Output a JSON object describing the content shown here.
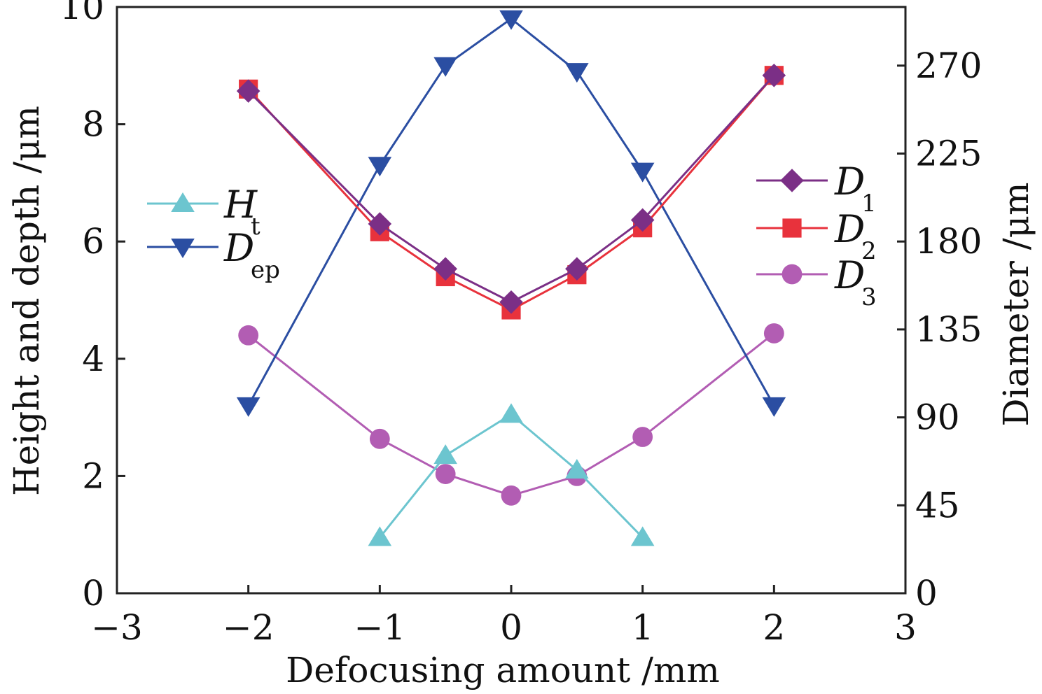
{
  "chart_data": {
    "type": "line",
    "xlabel": "Defocusing amount /mm",
    "ylabel_left": "Height and depth /μm",
    "ylabel_right": "Diameter /μm",
    "xlim": [
      -3,
      3
    ],
    "ylim_left": [
      0,
      10
    ],
    "ylim_right": [
      0,
      300
    ],
    "x_ticks": [
      "−3",
      "−2",
      "−1",
      "0",
      "1",
      "2",
      "3"
    ],
    "y_left_ticks": [
      "0",
      "2",
      "4",
      "6",
      "8",
      "10"
    ],
    "y_right_ticks": [
      "0",
      "45",
      "90",
      "135",
      "180",
      "225",
      "270"
    ],
    "grid": false,
    "series": [
      {
        "name": "H",
        "sub": "t",
        "axis": "left",
        "marker": "triangle-up",
        "color": "#6cc5cf",
        "points": [
          [
            -1,
            0.95
          ],
          [
            -0.5,
            2.35
          ],
          [
            0,
            3.05
          ],
          [
            0.5,
            2.1
          ],
          [
            1,
            0.95
          ]
        ]
      },
      {
        "name": "D",
        "sub": "ep",
        "axis": "left",
        "marker": "triangle-down",
        "color": "#2b4ea2",
        "points": [
          [
            -2,
            3.2
          ],
          [
            -1,
            7.3
          ],
          [
            -0.5,
            9.0
          ],
          [
            0,
            9.8
          ],
          [
            0.5,
            8.9
          ],
          [
            1,
            7.2
          ],
          [
            2,
            3.2
          ]
        ]
      },
      {
        "name": "D",
        "sub": "1",
        "axis": "right",
        "marker": "diamond",
        "color": "#7b2f86",
        "points": [
          [
            -2,
            257
          ],
          [
            -1,
            189
          ],
          [
            -0.5,
            166
          ],
          [
            0,
            149
          ],
          [
            0.5,
            166
          ],
          [
            1,
            191
          ],
          [
            2,
            265
          ]
        ]
      },
      {
        "name": "D",
        "sub": "2",
        "axis": "right",
        "marker": "square",
        "color": "#e8323c",
        "points": [
          [
            -2,
            258
          ],
          [
            -1,
            185
          ],
          [
            -0.5,
            162
          ],
          [
            0,
            145
          ],
          [
            0.5,
            163
          ],
          [
            1,
            187
          ],
          [
            2,
            265
          ]
        ]
      },
      {
        "name": "D",
        "sub": "3",
        "axis": "right",
        "marker": "circle",
        "color": "#b25db3",
        "points": [
          [
            -2,
            132
          ],
          [
            -1,
            79
          ],
          [
            -0.5,
            61
          ],
          [
            0,
            50
          ],
          [
            0.5,
            60
          ],
          [
            1,
            80
          ],
          [
            2,
            133
          ]
        ]
      }
    ],
    "legend_left": "left-middle",
    "legend_right": "right-upper"
  }
}
